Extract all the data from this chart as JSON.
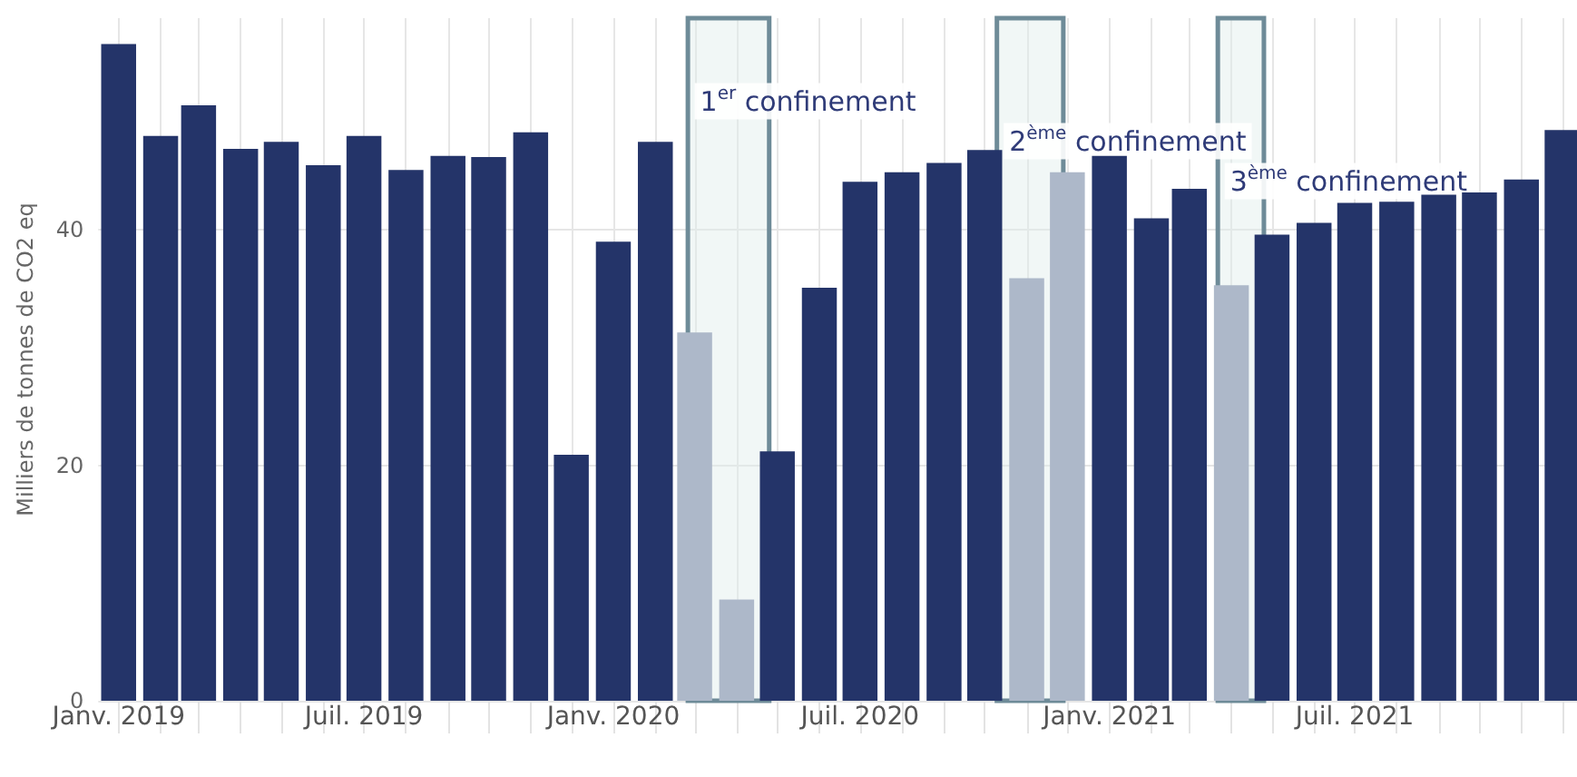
{
  "chart_data": {
    "type": "bar",
    "ylabel": "Milliers de tonnes de CO2 eq",
    "x": [
      "2019-01",
      "2019-02",
      "2019-03",
      "2019-04",
      "2019-05",
      "2019-06",
      "2019-07",
      "2019-08",
      "2019-09",
      "2019-10",
      "2019-11",
      "2019-12",
      "2020-01",
      "2020-02",
      "2020-03",
      "2020-04",
      "2020-05",
      "2020-06",
      "2020-07",
      "2020-08",
      "2020-09",
      "2020-10",
      "2020-11",
      "2020-12",
      "2021-01",
      "2021-02",
      "2021-03",
      "2021-04",
      "2021-05",
      "2021-06",
      "2021-07",
      "2021-08",
      "2021-09",
      "2021-10",
      "2021-11",
      "2021-12"
    ],
    "values": [
      55.8,
      48.0,
      50.6,
      46.9,
      47.5,
      45.5,
      48.0,
      45.1,
      46.3,
      46.2,
      48.3,
      20.9,
      39.0,
      47.5,
      31.3,
      8.6,
      21.2,
      35.1,
      44.1,
      44.9,
      45.7,
      46.8,
      35.9,
      44.9,
      46.3,
      41.0,
      43.5,
      35.3,
      39.6,
      40.6,
      42.3,
      42.4,
      43.0,
      43.2,
      44.3,
      48.5
    ],
    "colors": [
      "#243469",
      "#243469",
      "#243469",
      "#243469",
      "#243469",
      "#243469",
      "#243469",
      "#243469",
      "#243469",
      "#243469",
      "#243469",
      "#243469",
      "#243469",
      "#243469",
      "#adb8c9",
      "#adb8c9",
      "#243469",
      "#243469",
      "#243469",
      "#243469",
      "#243469",
      "#243469",
      "#adb8c9",
      "#adb8c9",
      "#243469",
      "#243469",
      "#243469",
      "#adb8c9",
      "#243469",
      "#243469",
      "#243469",
      "#243469",
      "#243469",
      "#243469",
      "#243469",
      "#243469"
    ],
    "xlim": [
      "2018-12-17",
      "2021-12-12"
    ],
    "xticks": [
      {
        "value": "2019-01",
        "label": "Janv. 2019"
      },
      {
        "value": "2019-02",
        "label": null
      },
      {
        "value": "2019-03",
        "label": null
      },
      {
        "value": "2019-04",
        "label": null
      },
      {
        "value": "2019-05",
        "label": null
      },
      {
        "value": "2019-06",
        "label": null
      },
      {
        "value": "2019-07",
        "label": "Juil. 2019"
      },
      {
        "value": "2019-08",
        "label": null
      },
      {
        "value": "2019-09",
        "label": null
      },
      {
        "value": "2019-10",
        "label": null
      },
      {
        "value": "2019-11",
        "label": null
      },
      {
        "value": "2019-12",
        "label": null
      },
      {
        "value": "2020-01",
        "label": "Janv. 2020"
      },
      {
        "value": "2020-02",
        "label": null
      },
      {
        "value": "2020-03",
        "label": null
      },
      {
        "value": "2020-04",
        "label": null
      },
      {
        "value": "2020-05",
        "label": null
      },
      {
        "value": "2020-06",
        "label": null
      },
      {
        "value": "2020-07",
        "label": "Juil. 2020"
      },
      {
        "value": "2020-08",
        "label": null
      },
      {
        "value": "2020-09",
        "label": null
      },
      {
        "value": "2020-10",
        "label": null
      },
      {
        "value": "2020-11",
        "label": null
      },
      {
        "value": "2020-12",
        "label": null
      },
      {
        "value": "2021-01",
        "label": "Janv. 2021"
      },
      {
        "value": "2021-02",
        "label": null
      },
      {
        "value": "2021-03",
        "label": null
      },
      {
        "value": "2021-04",
        "label": null
      },
      {
        "value": "2021-05",
        "label": null
      },
      {
        "value": "2021-06",
        "label": null
      },
      {
        "value": "2021-07",
        "label": "Juil. 2021"
      },
      {
        "value": "2021-08",
        "label": null
      },
      {
        "value": "2021-09",
        "label": null
      },
      {
        "value": "2021-10",
        "label": null
      },
      {
        "value": "2021-11",
        "label": null
      },
      {
        "value": "2021-12",
        "label": null
      }
    ],
    "ylim": [
      0,
      58
    ],
    "yticks": [
      0,
      20,
      40
    ],
    "grid": true,
    "bands": [
      {
        "axis": "x",
        "from": "2020-02-25",
        "to": "2020-04-25",
        "label": "1$^{er}$ confinement",
        "color": "#6e8b98"
      },
      {
        "axis": "x",
        "from": "2020-10-10",
        "to": "2020-11-28",
        "label": "2$^{ème}$ confinement",
        "color": "#6e8b98"
      },
      {
        "axis": "x",
        "from": "2021-03-22",
        "to": "2021-04-25",
        "label": "3$^{ème}$ confinement",
        "color": "#6e8b98"
      }
    ]
  }
}
